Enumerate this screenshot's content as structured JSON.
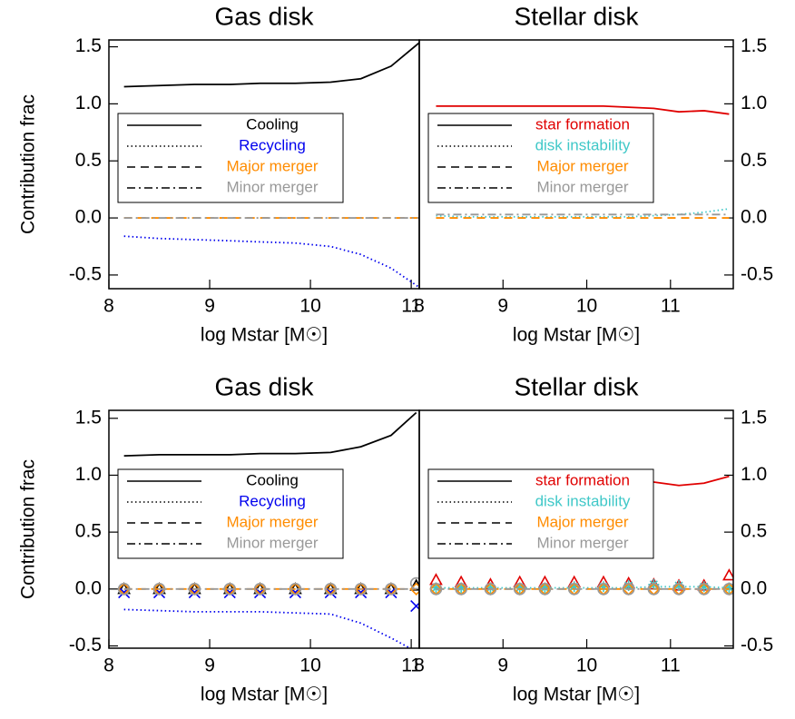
{
  "chart_data": [
    {
      "type": "line",
      "title": "Gas disk",
      "y_label": "Contribution frac",
      "x_label": "log Mstar [M☉]",
      "y_axis_side": "left",
      "xlim": [
        8,
        11.08
      ],
      "ylim": [
        -0.62,
        1.56
      ],
      "xticks": [
        8,
        9,
        10,
        11
      ],
      "yticks": [
        {
          "value": -0.5,
          "label": "-0.5"
        },
        {
          "value": 0,
          "label": "0.0"
        },
        0.5,
        {
          "value": 1,
          "label": "1.0"
        },
        1.5
      ],
      "x": [
        8.15,
        8.5,
        8.85,
        9.2,
        9.5,
        9.85,
        10.2,
        10.5,
        10.8,
        11.1
      ],
      "series": [
        {
          "name": "Cooling",
          "color": "#000000",
          "dash": "solid",
          "values": [
            1.15,
            1.16,
            1.17,
            1.17,
            1.18,
            1.18,
            1.19,
            1.22,
            1.33,
            1.55
          ]
        },
        {
          "name": "Recycling",
          "color": "#0000ee",
          "dash": "dotted",
          "values": [
            -0.16,
            -0.18,
            -0.19,
            -0.2,
            -0.21,
            -0.22,
            -0.25,
            -0.32,
            -0.44,
            -0.62
          ]
        },
        {
          "name": "Major merger",
          "color": "#ff8c00",
          "dash": "dashed",
          "values": [
            0,
            0,
            0,
            0,
            0,
            0,
            0,
            0,
            0,
            0
          ]
        },
        {
          "name": "Minor merger",
          "color": "#999999",
          "dash": "dashdot",
          "values": [
            0,
            0,
            0,
            0,
            0,
            0,
            0,
            0,
            0,
            0
          ]
        }
      ]
    },
    {
      "type": "line",
      "title": "Stellar disk",
      "x_label": "log Mstar [M☉]",
      "y_axis_side": "right",
      "xlim": [
        8,
        11.75
      ],
      "ylim": [
        -0.62,
        1.56
      ],
      "xticks": [
        8,
        9,
        10,
        11
      ],
      "yticks": [
        {
          "value": -0.5,
          "label": "-0.5"
        },
        {
          "value": 0,
          "label": "0.0"
        },
        0.5,
        {
          "value": 1,
          "label": "1.0"
        },
        1.5
      ],
      "x": [
        8.2,
        8.5,
        8.85,
        9.2,
        9.5,
        9.85,
        10.2,
        10.5,
        10.8,
        11.1,
        11.4,
        11.7
      ],
      "series": [
        {
          "name": "star formation",
          "color": "#e00000",
          "dash": "solid",
          "values": [
            0.98,
            0.98,
            0.98,
            0.98,
            0.98,
            0.98,
            0.98,
            0.97,
            0.96,
            0.93,
            0.94,
            0.91
          ]
        },
        {
          "name": "disk instability",
          "color": "#40c8c8",
          "dash": "dotted",
          "values": [
            0.02,
            0.01,
            0.01,
            0.01,
            0.01,
            0.01,
            0.01,
            0.01,
            0.02,
            0.03,
            0.05,
            0.08
          ]
        },
        {
          "name": "Major merger",
          "color": "#ff8c00",
          "dash": "dashed",
          "values": [
            0,
            0,
            0,
            0,
            0,
            0,
            0,
            0,
            0,
            0,
            0,
            0
          ]
        },
        {
          "name": "Minor merger",
          "color": "#999999",
          "dash": "dashdot",
          "values": [
            0.03,
            0.03,
            0.03,
            0.03,
            0.03,
            0.03,
            0.03,
            0.03,
            0.03,
            0.03,
            0.03,
            0.03
          ]
        }
      ]
    },
    {
      "type": "line",
      "title": "Gas disk",
      "y_label": "Contribution frac",
      "x_label": "log Mstar [M☉]",
      "y_axis_side": "left",
      "xlim": [
        8,
        11.08
      ],
      "ylim": [
        -0.52,
        1.57
      ],
      "xticks": [
        8,
        9,
        10,
        11
      ],
      "yticks": [
        {
          "value": -0.5,
          "label": "-0.5"
        },
        {
          "value": 0,
          "label": "0.0"
        },
        0.5,
        {
          "value": 1,
          "label": "1.0"
        },
        1.5
      ],
      "x": [
        8.15,
        8.5,
        8.85,
        9.2,
        9.5,
        9.85,
        10.2,
        10.5,
        10.8,
        11.05
      ],
      "series": [
        {
          "name": "Cooling",
          "color": "#000000",
          "dash": "solid",
          "marker": "triangle",
          "values": [
            1.17,
            1.18,
            1.18,
            1.18,
            1.19,
            1.19,
            1.2,
            1.25,
            1.35,
            1.55
          ],
          "points": [
            0,
            0,
            0,
            0,
            0,
            0,
            0,
            0,
            0,
            0.03
          ]
        },
        {
          "name": "Recycling",
          "color": "#0000ee",
          "dash": "dotted",
          "marker": "x",
          "values": [
            -0.18,
            -0.19,
            -0.2,
            -0.2,
            -0.2,
            -0.21,
            -0.22,
            -0.3,
            -0.43,
            -0.55
          ],
          "points": [
            -0.03,
            -0.03,
            -0.03,
            -0.03,
            -0.03,
            -0.03,
            -0.03,
            -0.03,
            -0.03,
            -0.15
          ]
        },
        {
          "name": "Major merger",
          "color": "#ff8c00",
          "dash": "dashed",
          "marker": "diamond",
          "values": [
            0,
            0,
            0,
            0,
            0,
            0,
            0,
            0,
            0,
            0
          ],
          "points": [
            0,
            0,
            0,
            0,
            0,
            0,
            0,
            0,
            0,
            0
          ]
        },
        {
          "name": "Minor merger",
          "color": "#999999",
          "dash": "dashdot",
          "marker": "circle",
          "values": [
            0,
            0,
            0,
            0,
            0,
            0,
            0,
            0,
            0,
            0
          ],
          "points": [
            0,
            0,
            0,
            0,
            0,
            0,
            0,
            0,
            0,
            0.05
          ]
        }
      ]
    },
    {
      "type": "line",
      "title": "Stellar disk",
      "x_label": "log Mstar [M☉]",
      "y_axis_side": "right",
      "xlim": [
        8,
        11.75
      ],
      "ylim": [
        -0.52,
        1.57
      ],
      "xticks": [
        8,
        9,
        10,
        11
      ],
      "yticks": [
        {
          "value": -0.5,
          "label": "-0.5"
        },
        {
          "value": 0,
          "label": "0.0"
        },
        0.5,
        {
          "value": 1,
          "label": "1.0"
        },
        1.5
      ],
      "x": [
        8.2,
        8.5,
        8.85,
        9.2,
        9.5,
        9.85,
        10.2,
        10.5,
        10.8,
        11.1,
        11.4,
        11.7
      ],
      "series": [
        {
          "name": "star formation",
          "color": "#e00000",
          "dash": "solid",
          "marker": "triangle",
          "values": [
            0.97,
            0.97,
            0.97,
            0.97,
            0.97,
            0.97,
            0.97,
            0.96,
            0.94,
            0.91,
            0.93,
            0.99
          ],
          "points": [
            0.08,
            0.06,
            0.04,
            0.06,
            0.06,
            0.06,
            0.06,
            0.05,
            0.04,
            0.03,
            0.03,
            0.12
          ]
        },
        {
          "name": "disk instability",
          "color": "#40c8c8",
          "dash": "dotted",
          "marker": "star",
          "values": [
            0.01,
            0.01,
            0.01,
            0.01,
            0.01,
            0.01,
            0.01,
            0.01,
            0.02,
            0.02,
            0.02,
            0.01
          ],
          "points": [
            0.01,
            0.01,
            0.01,
            0.01,
            0.01,
            0.02,
            0.02,
            0.03,
            0.04,
            0.03,
            0.02,
            0.01
          ]
        },
        {
          "name": "Major merger",
          "color": "#ff8c00",
          "dash": "dashed",
          "marker": "diamond",
          "values": [
            0,
            0,
            0,
            0,
            0,
            0,
            0,
            0,
            0,
            0,
            0,
            0
          ],
          "points": [
            0,
            0,
            0,
            0,
            0,
            0,
            0,
            0,
            0,
            0,
            0,
            0
          ]
        },
        {
          "name": "Minor merger",
          "color": "#999999",
          "dash": "dashdot",
          "marker": "circle",
          "values": [
            0,
            0,
            0,
            0,
            0,
            0,
            0,
            0,
            0,
            0,
            0,
            0
          ],
          "points": [
            0,
            0,
            0,
            0,
            0,
            0,
            0,
            0,
            0,
            0,
            0,
            0
          ]
        }
      ]
    }
  ]
}
